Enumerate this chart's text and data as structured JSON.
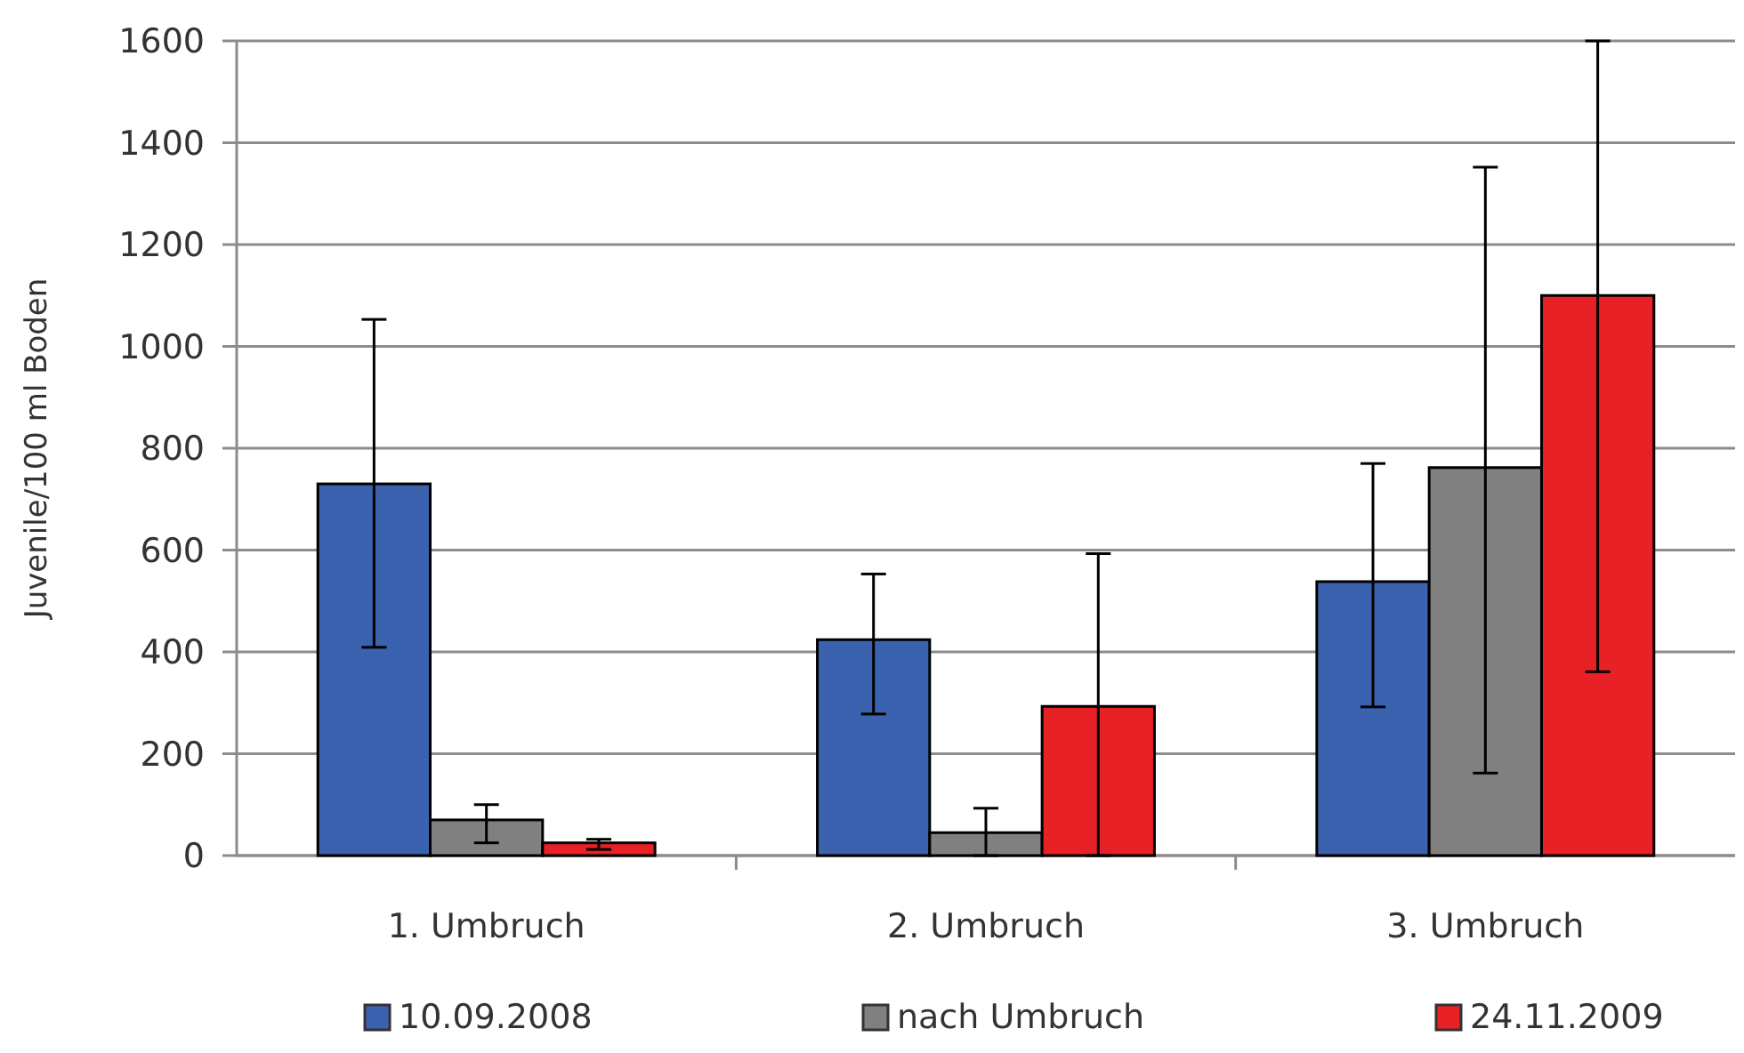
{
  "chart_data": {
    "type": "bar",
    "ylabel": "Juvenile/100 ml Boden",
    "categories": [
      "1. Umbruch",
      "2. Umbruch",
      "3. Umbruch"
    ],
    "series": [
      {
        "name": "10.09.2008",
        "color": "#3a62ae",
        "values": [
          730,
          424,
          538
        ],
        "errors": [
          [
            409,
            1053
          ],
          [
            278,
            553
          ],
          [
            292,
            770
          ]
        ]
      },
      {
        "name": "nach Umbruch",
        "color": "#808080",
        "values": [
          70,
          45,
          762
        ],
        "errors": [
          [
            25,
            100
          ],
          [
            0,
            93
          ],
          [
            162,
            1352
          ]
        ]
      },
      {
        "name": "24.11.2009",
        "color": "#e82127",
        "values": [
          25,
          293,
          1100
        ],
        "errors": [
          [
            12,
            32
          ],
          [
            0,
            593
          ],
          [
            361,
            1600
          ]
        ]
      }
    ],
    "ylim": [
      0,
      1600
    ],
    "yticks": [
      0,
      200,
      400,
      600,
      800,
      1000,
      1200,
      1400,
      1600
    ],
    "grid": "y",
    "legend": "bottom"
  }
}
